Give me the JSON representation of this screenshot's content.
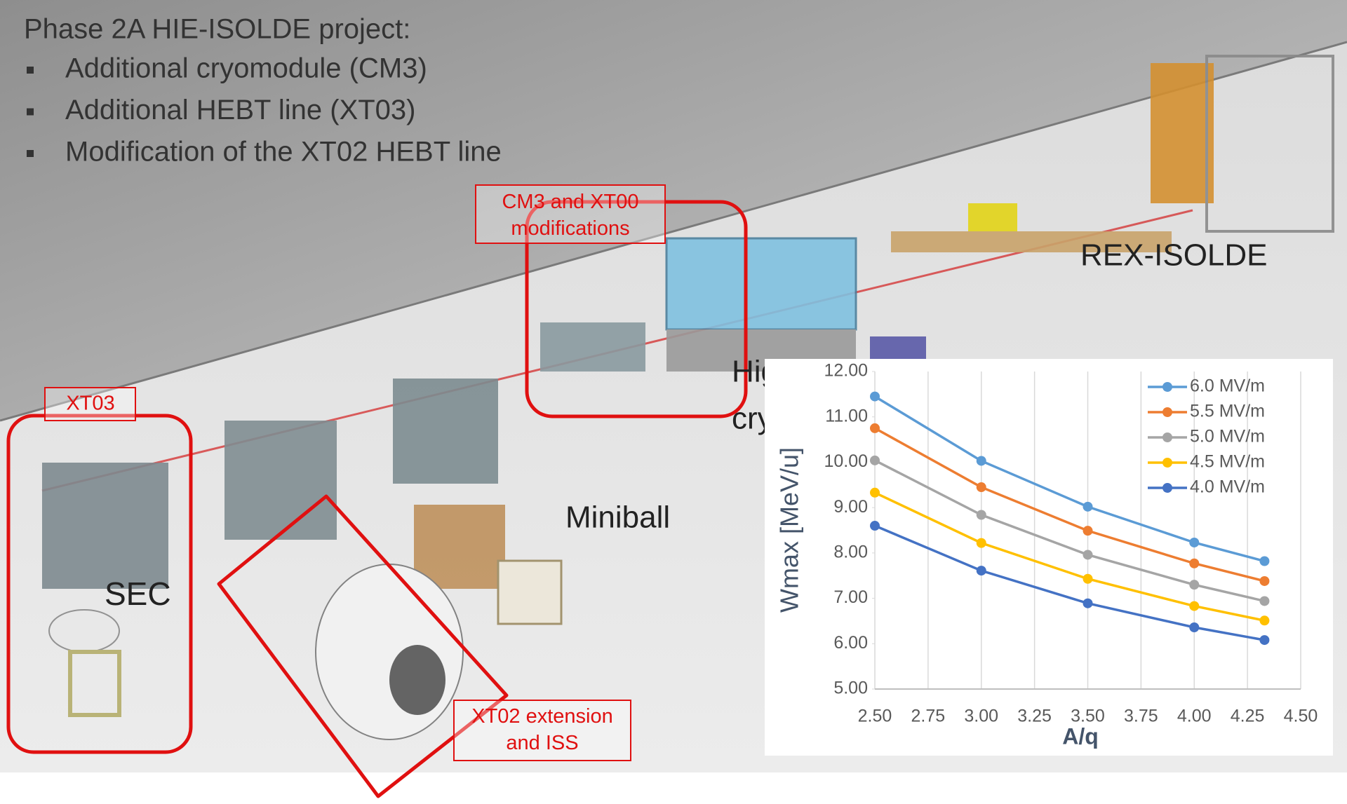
{
  "slide": {
    "title": "Phase 2A HIE-ISOLDE project:",
    "bullets": [
      "Additional cryomodule (CM3)",
      "Additional HEBT line (XT03)",
      "Modification of the XT02 HEBT line"
    ],
    "callouts": [
      "CM3 and XT00 modifications",
      "XT03",
      "XT02 extension and ISS"
    ],
    "labels": [
      "REX-ISOLDE",
      "Miniball",
      "SEC",
      "Hig",
      "cry"
    ]
  },
  "chart_data": {
    "type": "line",
    "x_label": "A/q",
    "y_label": "Wmax [MeV/u]",
    "x": [
      2.5,
      3.0,
      3.5,
      4.0,
      4.33
    ],
    "series": [
      {
        "name": "6.0 MV/m",
        "color": "#5b9bd5",
        "values": [
          11.45,
          10.03,
          9.02,
          8.23,
          7.82
        ]
      },
      {
        "name": "5.5 MV/m",
        "color": "#ed7d31",
        "values": [
          10.75,
          9.45,
          8.49,
          7.77,
          7.38
        ]
      },
      {
        "name": "5.0 MV/m",
        "color": "#a5a5a5",
        "values": [
          10.04,
          8.84,
          7.96,
          7.3,
          6.94
        ]
      },
      {
        "name": "4.5 MV/m",
        "color": "#ffc000",
        "values": [
          9.33,
          8.22,
          7.43,
          6.83,
          6.51
        ]
      },
      {
        "name": "4.0 MV/m",
        "color": "#4472c4",
        "values": [
          8.6,
          7.61,
          6.89,
          6.36,
          6.08
        ]
      }
    ],
    "xlim": [
      2.5,
      4.5
    ],
    "xticks": [
      {
        "value": 2.5,
        "label": "2.50"
      },
      {
        "value": 2.75,
        "label": "2.75"
      },
      {
        "value": 3.0,
        "label": "3.00"
      },
      {
        "value": 3.25,
        "label": "3.25"
      },
      {
        "value": 3.5,
        "label": "3.50"
      },
      {
        "value": 3.75,
        "label": "3.75"
      },
      {
        "value": 4.0,
        "label": "4.00"
      },
      {
        "value": 4.25,
        "label": "4.25"
      },
      {
        "value": 4.5,
        "label": "4.50"
      }
    ],
    "ylim": [
      5,
      12
    ],
    "yticks": [
      {
        "value": 5,
        "label": "5.00"
      },
      {
        "value": 6,
        "label": "6.00"
      },
      {
        "value": 7,
        "label": "7.00"
      },
      {
        "value": 8,
        "label": "8.00"
      },
      {
        "value": 9,
        "label": "9.00"
      },
      {
        "value": 10,
        "label": "10.00"
      },
      {
        "value": 11,
        "label": "11.00"
      },
      {
        "value": 12,
        "label": "12.00"
      }
    ],
    "grid": "x",
    "legend": "top-right"
  }
}
